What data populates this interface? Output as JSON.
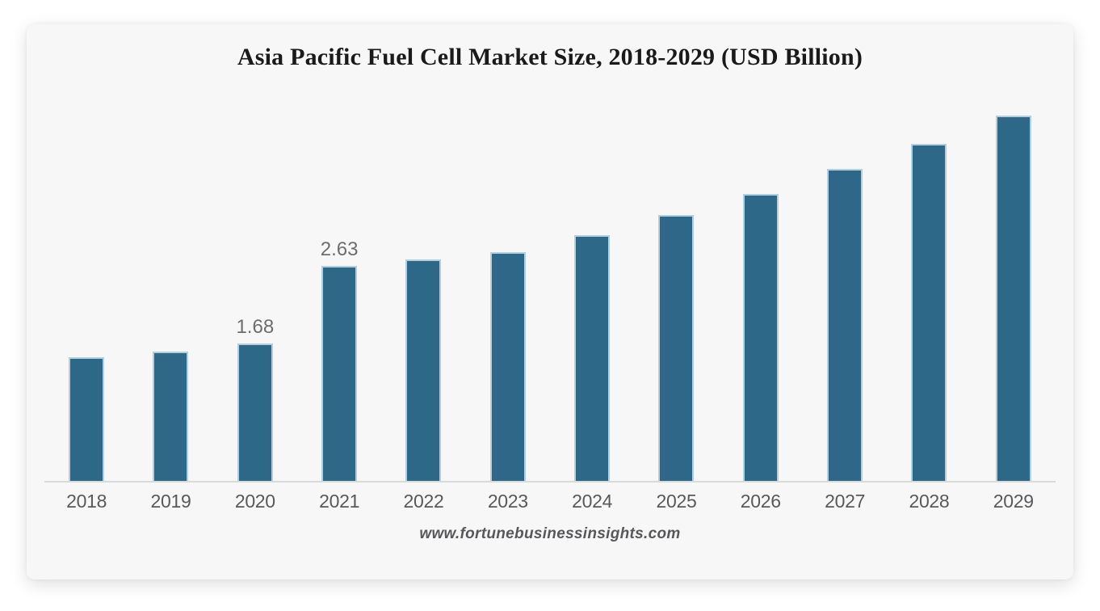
{
  "chart": {
    "title": "Asia Pacific Fuel Cell Market Size, 2018-2029 (USD Billion)",
    "source": "www.fortunebusinessinsights.com"
  },
  "chart_data": {
    "type": "bar",
    "title": "Asia Pacific Fuel Cell Market Size, 2018-2029 (USD Billion)",
    "categories": [
      "2018",
      "2019",
      "2020",
      "2021",
      "2022",
      "2023",
      "2024",
      "2025",
      "2026",
      "2027",
      "2028",
      "2029"
    ],
    "values": [
      1.51,
      1.58,
      1.68,
      2.63,
      2.71,
      2.8,
      3.0,
      3.25,
      3.51,
      3.81,
      4.12,
      4.47
    ],
    "data_labels": {
      "2020": "1.68",
      "2021": "2.63"
    },
    "xlabel": "",
    "ylabel": "USD Billion",
    "ylim": [
      0,
      4.6
    ],
    "grid": false,
    "legend": false,
    "bar_color": "#2e6889",
    "bar_edge_color": "#b3cfdf",
    "axis_line_color": "#dadada",
    "label_color": "#58595b",
    "source": "www.fortunebusinessinsights.com"
  }
}
